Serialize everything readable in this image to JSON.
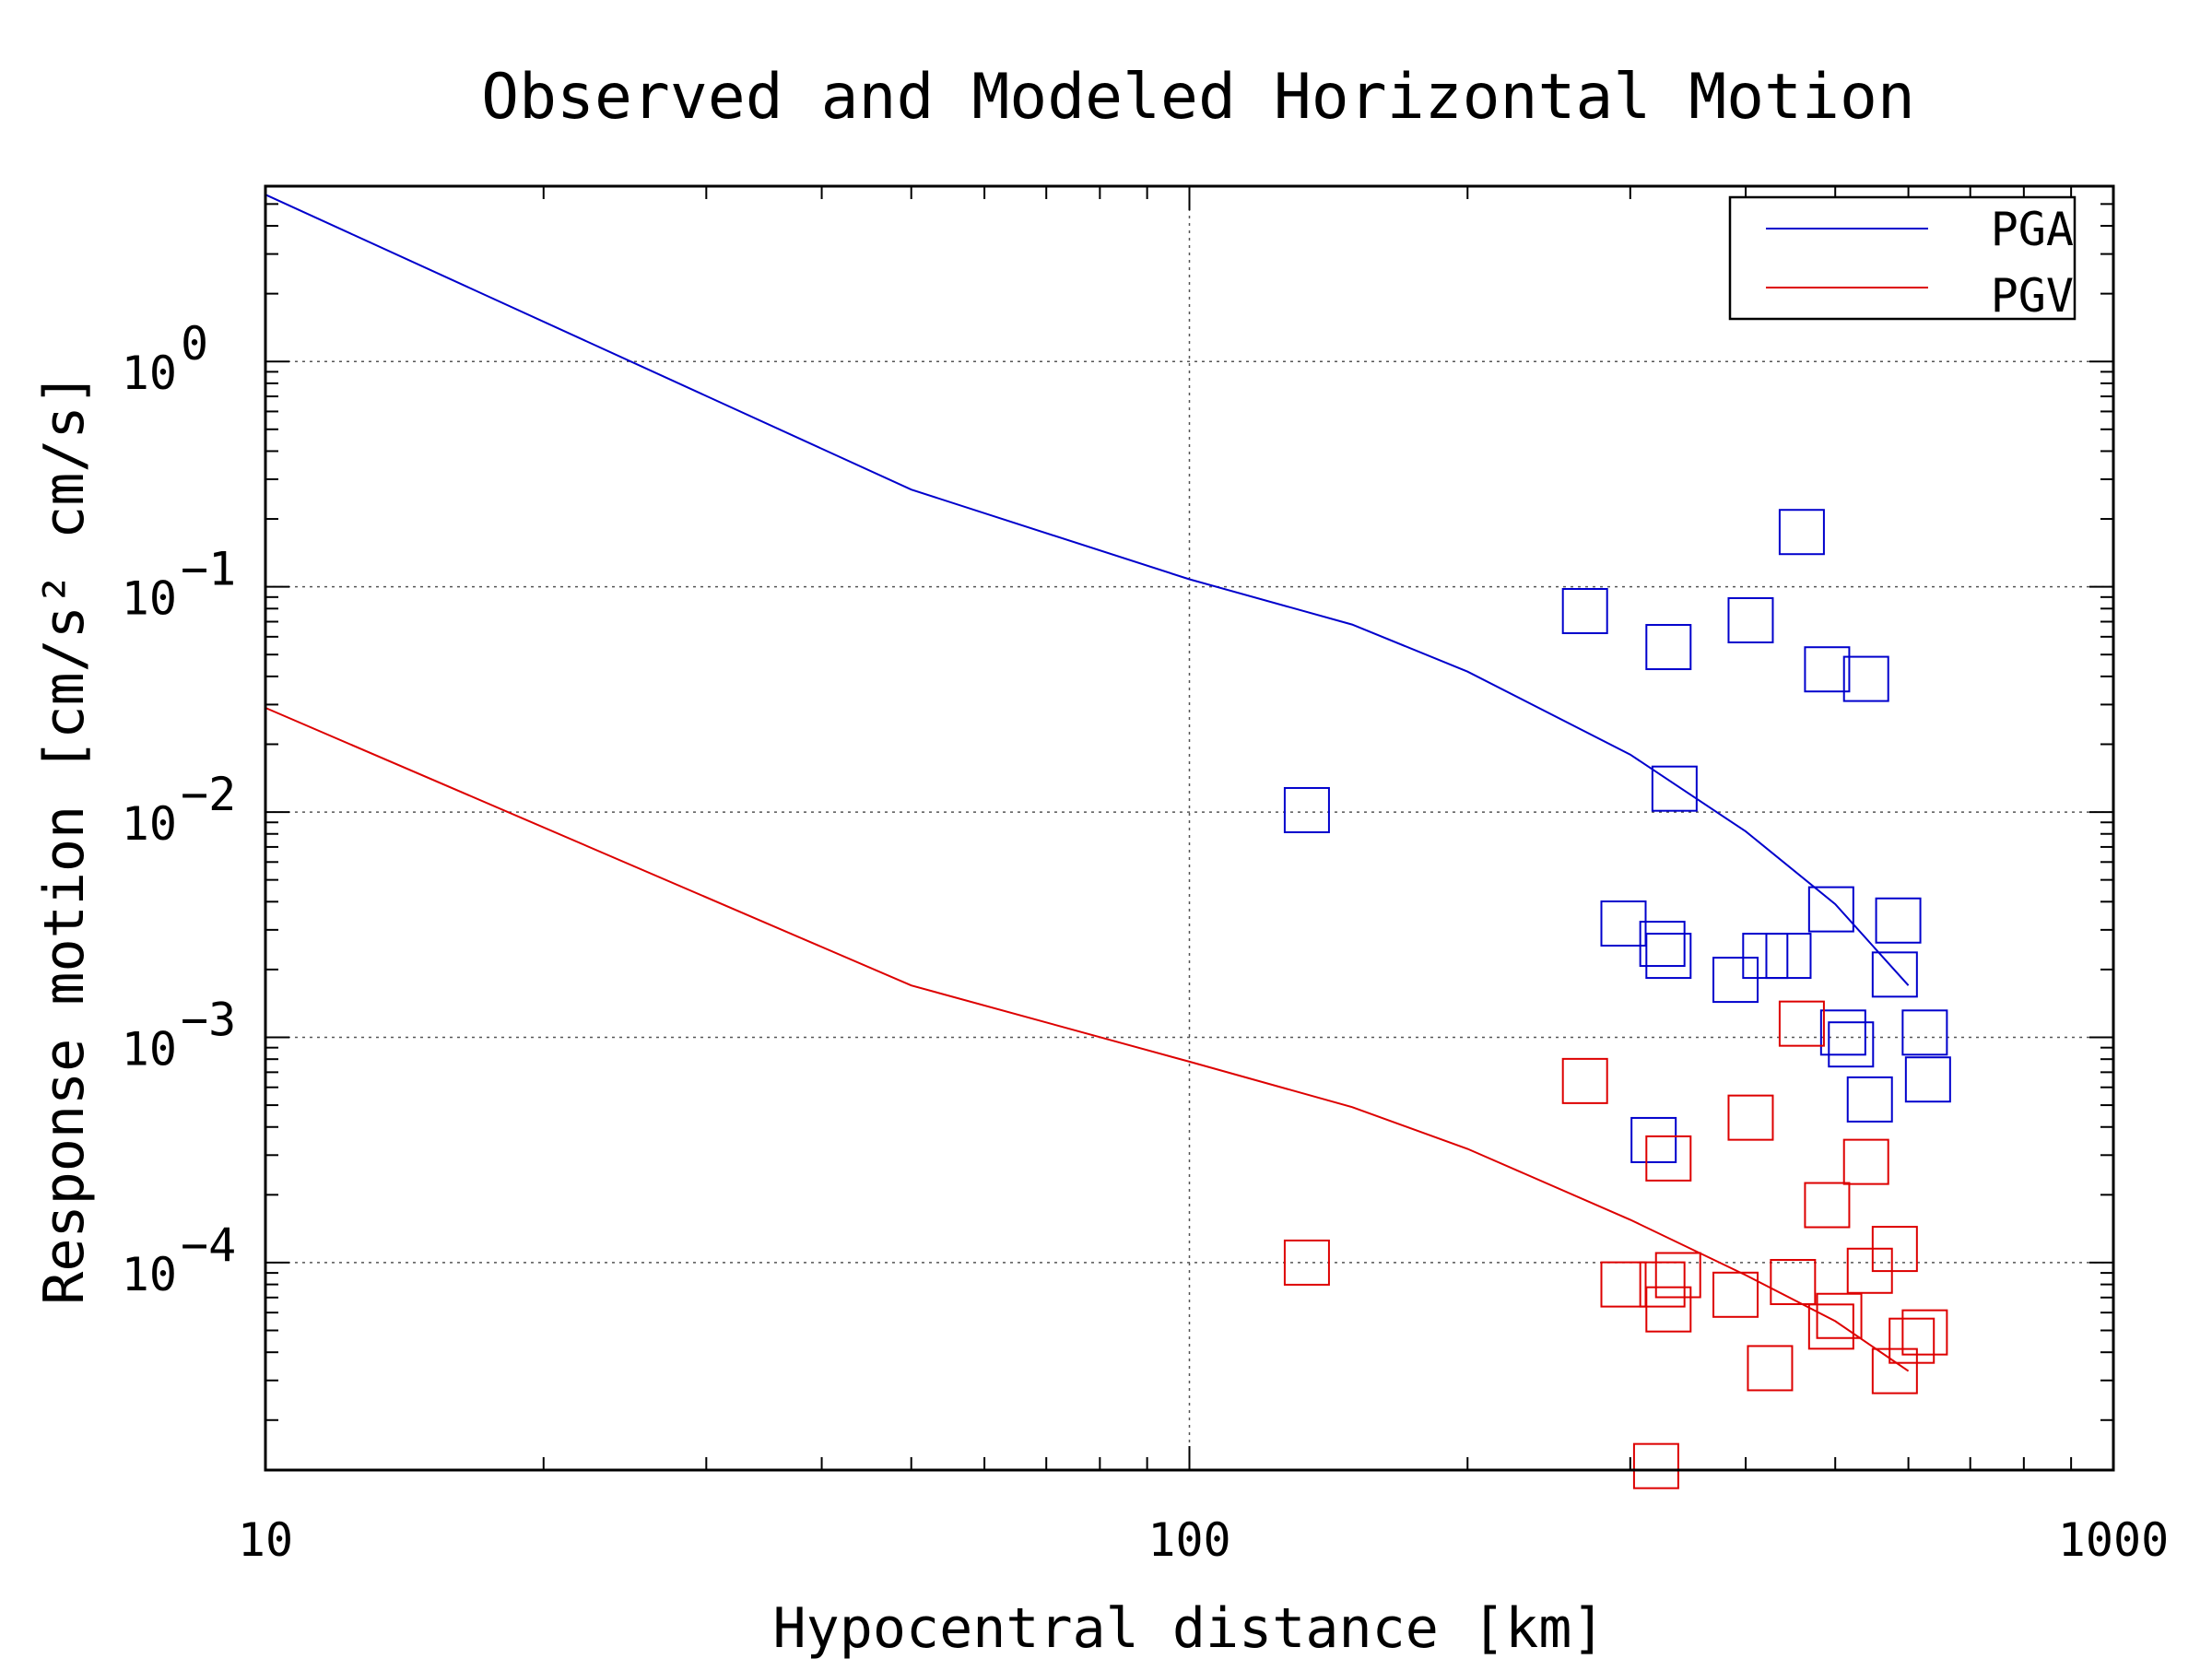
{
  "chart_data": {
    "type": "scatter",
    "title": "Observed and Modeled Horizontal Motion",
    "xlabel": "Hypocentral distance [km]",
    "ylabel": "Response motion [cm/s² cm/s]",
    "x_scale": "log",
    "y_scale": "log",
    "xlim": [
      10,
      1000
    ],
    "ylim": [
      1.2e-05,
      6
    ],
    "x_ticks": [
      {
        "value": 10,
        "label": "10"
      },
      {
        "value": 100,
        "label": "100"
      },
      {
        "value": 1000,
        "label": "1000"
      }
    ],
    "y_ticks": [
      {
        "value": 1,
        "label": "10",
        "exp": "0"
      },
      {
        "value": 0.1,
        "label": "10",
        "exp": "−1"
      },
      {
        "value": 0.01,
        "label": "10",
        "exp": "−2"
      },
      {
        "value": 0.001,
        "label": "10",
        "exp": "−3"
      },
      {
        "value": 0.0001,
        "label": "10",
        "exp": "−4"
      }
    ],
    "grid": true,
    "legend_position": "top-right",
    "series": [
      {
        "name": "PGA",
        "color": "#0000cc",
        "line": [
          [
            10,
            5.5
          ],
          [
            50,
            0.27
          ],
          [
            100,
            0.108
          ],
          [
            150,
            0.068
          ],
          [
            200,
            0.042
          ],
          [
            300,
            0.018
          ],
          [
            400,
            0.0082
          ],
          [
            500,
            0.0039
          ],
          [
            600,
            0.0017
          ]
        ],
        "points": [
          [
            134,
            0.0102
          ],
          [
            268,
            0.078
          ],
          [
            330,
            0.054
          ],
          [
            335,
            0.0127
          ],
          [
            405,
            0.071
          ],
          [
            460,
            0.175
          ],
          [
            490,
            0.043
          ],
          [
            540,
            0.039
          ],
          [
            295,
            0.0032
          ],
          [
            325,
            0.0026
          ],
          [
            330,
            0.0023
          ],
          [
            390,
            0.0018
          ],
          [
            420,
            0.0023
          ],
          [
            445,
            0.0023
          ],
          [
            495,
            0.0037
          ],
          [
            585,
            0.0033
          ],
          [
            580,
            0.0019
          ],
          [
            510,
            0.00105
          ],
          [
            520,
            0.00093
          ],
          [
            545,
            0.00053
          ],
          [
            625,
            0.00105
          ],
          [
            630,
            0.00065
          ],
          [
            318,
            0.00035
          ]
        ]
      },
      {
        "name": "PGV",
        "color": "#dd0000",
        "line": [
          [
            10,
            0.029
          ],
          [
            50,
            0.0017
          ],
          [
            100,
            0.00078
          ],
          [
            150,
            0.00049
          ],
          [
            200,
            0.00032
          ],
          [
            300,
            0.000155
          ],
          [
            400,
            8.8e-05
          ],
          [
            500,
            5.5e-05
          ],
          [
            600,
            3.3e-05
          ]
        ],
        "points": [
          [
            134,
            0.0001
          ],
          [
            268,
            0.00064
          ],
          [
            330,
            0.00029
          ],
          [
            405,
            0.00044
          ],
          [
            460,
            0.00115
          ],
          [
            490,
            0.00018
          ],
          [
            540,
            0.00028
          ],
          [
            295,
            8e-05
          ],
          [
            325,
            8e-05
          ],
          [
            330,
            6.2e-05
          ],
          [
            338,
            8.8e-05
          ],
          [
            390,
            7.2e-05
          ],
          [
            425,
            3.4e-05
          ],
          [
            450,
            8.2e-05
          ],
          [
            495,
            5.2e-05
          ],
          [
            505,
            5.8e-05
          ],
          [
            545,
            9.2e-05
          ],
          [
            580,
            0.000115
          ],
          [
            580,
            3.3e-05
          ],
          [
            605,
            4.5e-05
          ],
          [
            625,
            4.9e-05
          ],
          [
            320,
            1.25e-05
          ]
        ]
      }
    ]
  }
}
